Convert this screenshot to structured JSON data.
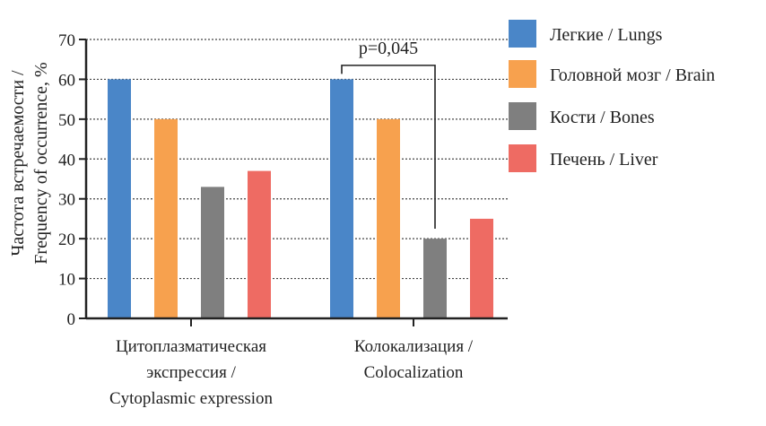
{
  "chart_data": {
    "type": "bar",
    "title": "",
    "ylabel_lines": [
      "Частота встречаемости /",
      "Frequency of occurrence, %"
    ],
    "ylim": [
      0,
      70
    ],
    "yticks": [
      0,
      10,
      20,
      30,
      40,
      50,
      60,
      70
    ],
    "grid": true,
    "legend_position": "right",
    "categories": [
      {
        "lines": [
          "Цитоплазматическая",
          "экспрессия /",
          "Cytoplasmic expression"
        ]
      },
      {
        "lines": [
          "Колокализация /",
          "Colocalization"
        ]
      }
    ],
    "series": [
      {
        "name": "Легкие / Lungs",
        "color": "#4a86c8",
        "values": [
          60,
          60
        ]
      },
      {
        "name": "Головной мозг / Brain",
        "color": "#f7a14e",
        "values": [
          50,
          50
        ]
      },
      {
        "name": "Кости / Bones",
        "color": "#7f7f7f",
        "values": [
          33,
          20
        ]
      },
      {
        "name": "Печень / Liver",
        "color": "#ee6b63",
        "values": [
          37,
          25
        ]
      }
    ],
    "annotation": {
      "text": "p=0,045",
      "category_index": 1,
      "from_series": 0,
      "to_series": 2
    }
  }
}
